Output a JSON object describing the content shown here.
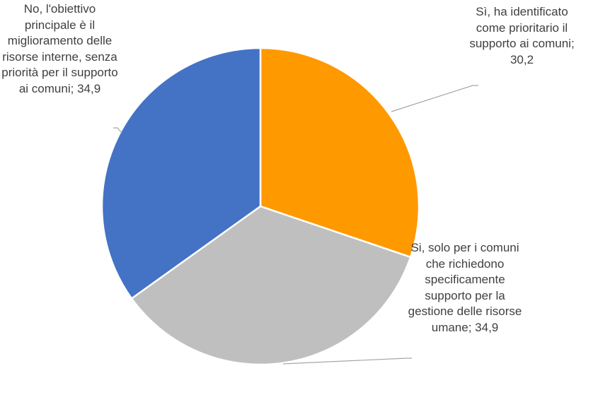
{
  "chart_data": {
    "type": "pie",
    "categories": [
      "Sì, ha identificato come prioritario il supporto ai comuni",
      "Si, solo per i comuni che richiedono specificamente supporto per la gestione delle risorse umane",
      "No, l'obiettivo principale è il miglioramento delle risorse interne, senza priorità per il supporto ai comuni"
    ],
    "values": [
      30.2,
      34.9,
      34.9
    ],
    "value_labels": [
      "30,2",
      "34,9",
      "34,9"
    ],
    "label_separator": "; ",
    "colors": [
      "#FF9900",
      "#BFBFBF",
      "#4472C4"
    ]
  }
}
